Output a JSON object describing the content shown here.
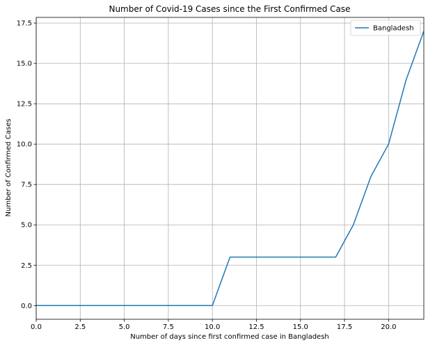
{
  "chart_data": {
    "type": "line",
    "title": "Number of Covid-19 Cases since the First Confirmed Case",
    "xlabel": "Number of days since first confirmed case in Bangladesh",
    "ylabel": "Number of Confirmed Cases",
    "xlim": [
      0,
      22
    ],
    "ylim": [
      -0.85,
      17.85
    ],
    "xticks": [
      0,
      2.5,
      5,
      7.5,
      10,
      12.5,
      15,
      17.5,
      20
    ],
    "xtick_labels": [
      "0.0",
      "2.5",
      "5.0",
      "7.5",
      "10.0",
      "12.5",
      "15.0",
      "17.5",
      "20.0"
    ],
    "yticks": [
      0,
      2.5,
      5,
      7.5,
      10,
      12.5,
      15,
      17.5
    ],
    "ytick_labels": [
      "0.0",
      "2.5",
      "5.0",
      "7.5",
      "10.0",
      "12.5",
      "15.0",
      "17.5"
    ],
    "grid": true,
    "legend_position": "top-right",
    "series": [
      {
        "name": "Bangladesh",
        "color": "#1f77b4",
        "x": [
          0,
          1,
          2,
          3,
          4,
          5,
          6,
          7,
          8,
          9,
          10,
          11,
          12,
          13,
          14,
          15,
          16,
          17,
          18,
          19,
          20,
          21,
          22
        ],
        "y": [
          0,
          0,
          0,
          0,
          0,
          0,
          0,
          0,
          0,
          0,
          0,
          3,
          3,
          3,
          3,
          3,
          3,
          3,
          5,
          8,
          10,
          14,
          17
        ]
      }
    ]
  }
}
